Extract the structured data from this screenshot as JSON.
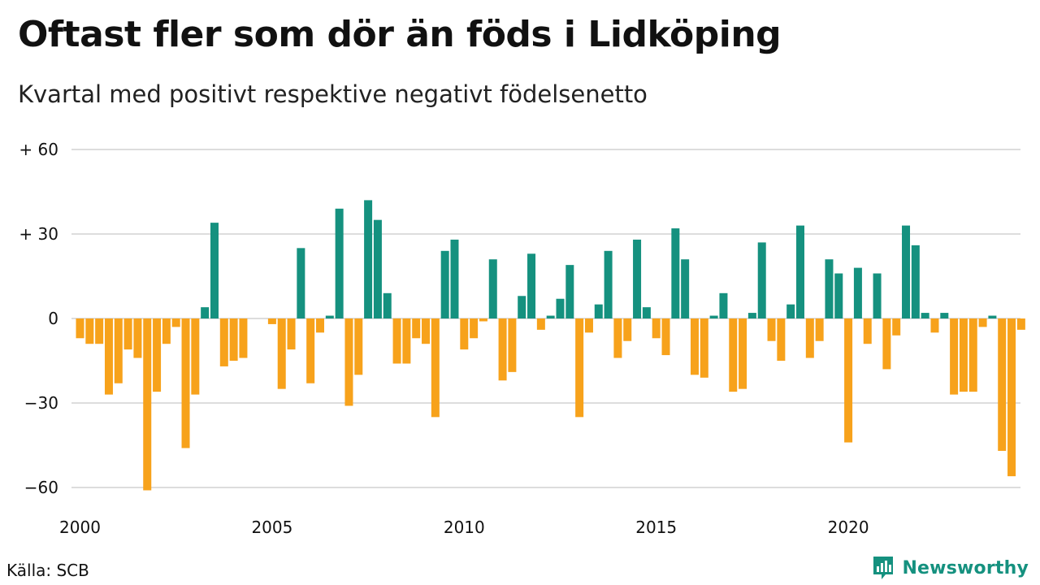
{
  "title": "Oftast fler som dör än föds i Lidköping",
  "subtitle": "Kvartal med positivt respektive negativt födelsenetto",
  "source": "Källa: SCB",
  "brand": {
    "name": "Newsworthy",
    "icon": "newsworthy-logo-icon"
  },
  "colors": {
    "positive": "#15917f",
    "negative": "#f7a21b",
    "grid": "#dddddd",
    "text": "#111111"
  },
  "chart_data": {
    "type": "bar",
    "x_start": "2000-Q1",
    "x_ticks": [
      "2000",
      "2005",
      "2010",
      "2015",
      "2020"
    ],
    "y_ticks": [
      60,
      30,
      0,
      -30,
      -60
    ],
    "y_tick_labels": [
      "+ 60",
      "+ 30",
      "0",
      "−30",
      "−60"
    ],
    "ylim": [
      -65,
      62
    ],
    "grid": true,
    "values": [
      -7,
      -9,
      -9,
      -27,
      -23,
      -11,
      -14,
      -61,
      -26,
      -9,
      -3,
      -46,
      -27,
      4,
      34,
      -17,
      -15,
      -14,
      0,
      0,
      -2,
      -25,
      -11,
      25,
      -23,
      -5,
      1,
      39,
      -31,
      -20,
      42,
      35,
      9,
      -16,
      -16,
      -7,
      -9,
      -35,
      24,
      28,
      -11,
      -7,
      -1,
      21,
      -22,
      -19,
      8,
      23,
      -4,
      1,
      7,
      19,
      -35,
      -5,
      5,
      24,
      -14,
      -8,
      28,
      4,
      -7,
      -13,
      32,
      21,
      -20,
      -21,
      1,
      9,
      -26,
      -25,
      2,
      27,
      -8,
      -15,
      5,
      33,
      -14,
      -8,
      21,
      16,
      -44,
      18,
      -9,
      16,
      -18,
      -6,
      33,
      26,
      2,
      -5,
      2,
      -27,
      -26,
      -26,
      -3,
      1,
      -47,
      -56,
      -4
    ]
  }
}
